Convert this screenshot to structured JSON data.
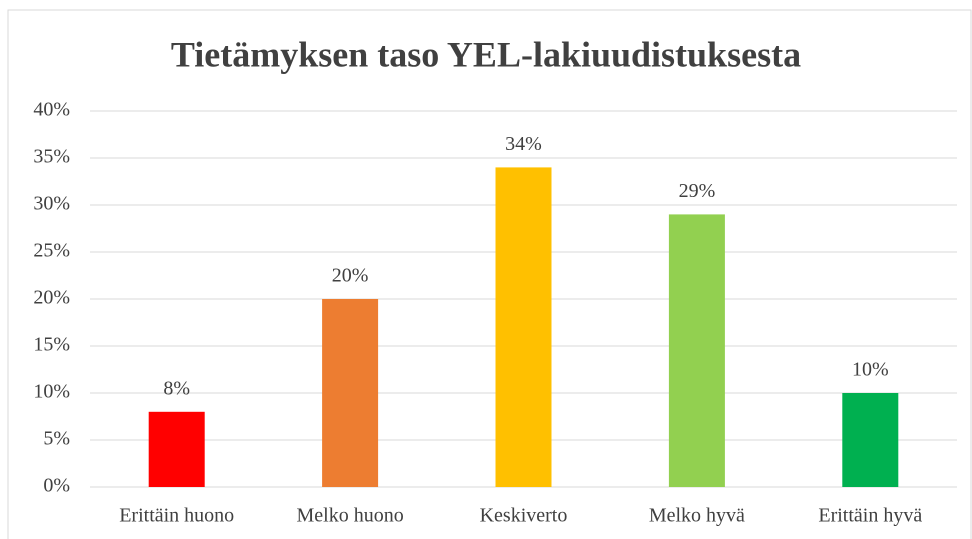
{
  "chart_data": {
    "type": "bar",
    "title": "Tietämyksen taso YEL-lakiuudistuksesta",
    "categories": [
      "Erittäin huono",
      "Melko huono",
      "Keskiverto",
      "Melko hyvä",
      "Erittäin hyvä"
    ],
    "values": [
      8,
      20,
      34,
      29,
      10
    ],
    "value_labels": [
      "8%",
      "20%",
      "34%",
      "29%",
      "10%"
    ],
    "colors": [
      "#ff0000",
      "#ed7d31",
      "#ffc000",
      "#92d050",
      "#00b050"
    ],
    "ylim": [
      0,
      40
    ],
    "yticks": [
      {
        "value": 0,
        "label": "0%"
      },
      {
        "value": 5,
        "label": "5%"
      },
      {
        "value": 10,
        "label": "10%"
      },
      {
        "value": 15,
        "label": "15%"
      },
      {
        "value": 20,
        "label": "20%"
      },
      {
        "value": 25,
        "label": "25%"
      },
      {
        "value": 30,
        "label": "30%"
      },
      {
        "value": 35,
        "label": "35%"
      },
      {
        "value": 40,
        "label": "40%"
      }
    ],
    "grid": true
  }
}
